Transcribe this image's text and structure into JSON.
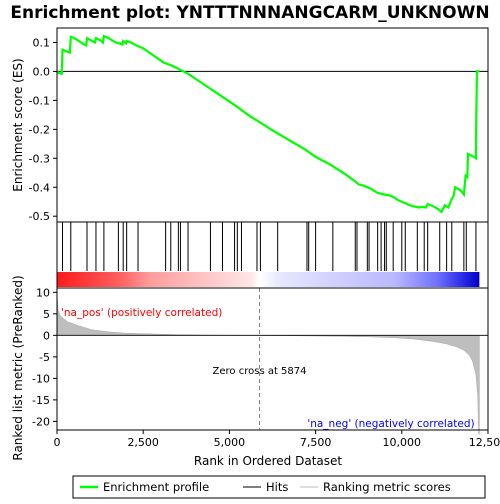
{
  "chart_data": {
    "type": "line",
    "title": "Enrichment plot: YNTTTNNNANGCARM_UNKNOWN",
    "es_panel": {
      "ylabel": "Enrichment score (ES)",
      "ylim": [
        -0.52,
        0.15
      ],
      "yticks": [
        0.1,
        0.0,
        -0.1,
        -0.2,
        -0.3,
        -0.4,
        -0.5
      ],
      "ytick_labels": [
        "0.1",
        "0.0",
        "-0.1",
        "-0.2",
        "-0.3",
        "-0.4",
        "-0.5"
      ],
      "series_name": "Enrichment profile",
      "color": "#00ff00",
      "points": [
        [
          0,
          0.0
        ],
        [
          50,
          -0.005
        ],
        [
          140,
          -0.008
        ],
        [
          160,
          0.075
        ],
        [
          260,
          0.07
        ],
        [
          370,
          0.065
        ],
        [
          400,
          0.12
        ],
        [
          500,
          0.115
        ],
        [
          600,
          0.108
        ],
        [
          760,
          0.095
        ],
        [
          850,
          0.09
        ],
        [
          870,
          0.115
        ],
        [
          980,
          0.108
        ],
        [
          1100,
          0.1
        ],
        [
          1130,
          0.115
        ],
        [
          1250,
          0.108
        ],
        [
          1330,
          0.1
        ],
        [
          1360,
          0.122
        ],
        [
          1500,
          0.115
        ],
        [
          1700,
          0.1
        ],
        [
          1780,
          0.098
        ],
        [
          1900,
          0.093
        ],
        [
          1920,
          0.105
        ],
        [
          2000,
          0.097
        ],
        [
          2020,
          0.105
        ],
        [
          2150,
          0.1
        ],
        [
          2300,
          0.09
        ],
        [
          2500,
          0.08
        ],
        [
          2800,
          0.055
        ],
        [
          3100,
          0.03
        ],
        [
          3300,
          0.022
        ],
        [
          3500,
          0.01
        ],
        [
          3800,
          -0.008
        ],
        [
          4200,
          -0.04
        ],
        [
          4700,
          -0.08
        ],
        [
          5200,
          -0.12
        ],
        [
          5600,
          -0.155
        ],
        [
          5874,
          -0.175
        ],
        [
          6200,
          -0.2
        ],
        [
          6700,
          -0.235
        ],
        [
          7200,
          -0.27
        ],
        [
          7500,
          -0.295
        ],
        [
          7900,
          -0.32
        ],
        [
          8300,
          -0.35
        ],
        [
          8650,
          -0.38
        ],
        [
          8750,
          -0.39
        ],
        [
          8900,
          -0.395
        ],
        [
          9100,
          -0.405
        ],
        [
          9300,
          -0.42
        ],
        [
          9500,
          -0.425
        ],
        [
          9700,
          -0.43
        ],
        [
          9900,
          -0.445
        ],
        [
          10100,
          -0.455
        ],
        [
          10300,
          -0.465
        ],
        [
          10500,
          -0.47
        ],
        [
          10600,
          -0.468
        ],
        [
          10700,
          -0.47
        ],
        [
          10750,
          -0.458
        ],
        [
          10900,
          -0.465
        ],
        [
          11050,
          -0.475
        ],
        [
          11150,
          -0.485
        ],
        [
          11250,
          -0.462
        ],
        [
          11350,
          -0.47
        ],
        [
          11450,
          -0.44
        ],
        [
          11500,
          -0.43
        ],
        [
          11550,
          -0.4
        ],
        [
          11700,
          -0.41
        ],
        [
          11800,
          -0.425
        ],
        [
          11850,
          -0.36
        ],
        [
          11900,
          -0.365
        ],
        [
          11920,
          -0.285
        ],
        [
          12000,
          -0.29
        ],
        [
          12100,
          -0.295
        ],
        [
          12150,
          -0.3
        ],
        [
          12160,
          -0.15
        ],
        [
          12180,
          0.0
        ],
        [
          12250,
          0.0
        ]
      ]
    },
    "hits_panel": {
      "hit_ranks": [
        160,
        400,
        870,
        1130,
        1360,
        1780,
        1920,
        2020,
        2350,
        3150,
        3300,
        3520,
        3580,
        3800,
        4450,
        4800,
        5150,
        5230,
        5350,
        5800,
        5900,
        6400,
        7250,
        7300,
        7500,
        8000,
        8650,
        8700,
        9000,
        9050,
        9300,
        9400,
        9500,
        9550,
        9750,
        10000,
        10100,
        10450,
        10650,
        10750,
        11100,
        11300,
        11450,
        11800,
        11870,
        12150
      ]
    },
    "metric_panel": {
      "ylabel": "Ranked list metric (PreRanked)",
      "xlabel": "Rank in Ordered Dataset",
      "xlim": [
        0,
        12500
      ],
      "xticks": [
        0,
        2500,
        5000,
        7500,
        10000,
        12500
      ],
      "xtick_labels": [
        "0",
        "2,500",
        "5,000",
        "7,500",
        "10,000",
        "12,500"
      ],
      "ylim": [
        -22,
        11
      ],
      "yticks": [
        10,
        5,
        0,
        -5,
        -10,
        -15,
        -20
      ],
      "ytick_labels": [
        "10",
        "5",
        "0",
        "-5",
        "-10",
        "-15",
        "-20"
      ],
      "profile": [
        [
          0,
          10
        ],
        [
          30,
          6
        ],
        [
          100,
          4.5
        ],
        [
          300,
          3.2
        ],
        [
          600,
          2.3
        ],
        [
          1000,
          1.3
        ],
        [
          1500,
          0.8
        ],
        [
          2000,
          0.5
        ],
        [
          2800,
          0.3
        ],
        [
          3500,
          0.15
        ],
        [
          4500,
          0.06
        ],
        [
          5874,
          0.0
        ],
        [
          7000,
          -0.1
        ],
        [
          8000,
          -0.2
        ],
        [
          9000,
          -0.35
        ],
        [
          9800,
          -0.55
        ],
        [
          10400,
          -0.9
        ],
        [
          10900,
          -1.4
        ],
        [
          11300,
          -2.0
        ],
        [
          11600,
          -2.7
        ],
        [
          11800,
          -3.5
        ],
        [
          11950,
          -4.5
        ],
        [
          12050,
          -6
        ],
        [
          12150,
          -9
        ],
        [
          12200,
          -14
        ],
        [
          12230,
          -23
        ],
        [
          12250,
          -23
        ]
      ],
      "zero_cross": 5874,
      "zero_cross_label": "Zero cross at 5874",
      "pos_label": "'na_pos' (positively correlated)",
      "neg_label": "'na_neg' (negatively correlated)"
    },
    "legend": {
      "placement": "bottom",
      "items": [
        "Enrichment profile",
        "Hits",
        "Ranking metric scores"
      ]
    },
    "colors": {
      "profile": "#00ff00",
      "hits": "#000000",
      "metric": "#bebebe",
      "pos_text": "#ff0000",
      "neg_text": "#0000ff",
      "zero_line": "#808080"
    }
  }
}
